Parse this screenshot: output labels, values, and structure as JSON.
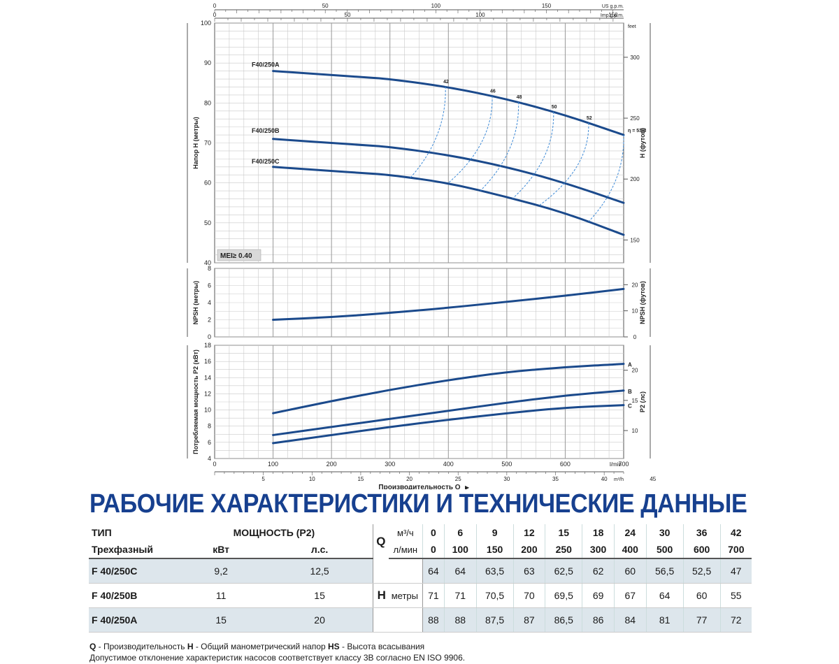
{
  "chart_data": [
    {
      "type": "line",
      "ylabel": "Напор H (метры)",
      "ylabel_right": "H (футов)",
      "ylim": [
        40,
        100
      ],
      "yticks": [
        40,
        50,
        60,
        70,
        80,
        90,
        100
      ],
      "y_right_ticks": [
        150,
        200,
        250,
        300
      ],
      "y_right_unit": "feet",
      "x_us_gpm_ticks": [
        0,
        50,
        100,
        150
      ],
      "x_us_label": "US g.p.m.",
      "x_imp_gpm_ticks": [
        0,
        50,
        100,
        150
      ],
      "x_imp_label": "Imp g.p.m.",
      "badge": "MEI≥ 0.40",
      "x": [
        100,
        150,
        200,
        250,
        300,
        400,
        500,
        600,
        700
      ],
      "series": [
        {
          "name": "F40/250A",
          "values": [
            88,
            87.5,
            87,
            86.5,
            86,
            84,
            81,
            77,
            72
          ]
        },
        {
          "name": "F40/250B",
          "values": [
            71,
            70.5,
            70,
            69.5,
            69,
            67,
            64,
            60,
            55
          ]
        },
        {
          "name": "F40/250C",
          "values": [
            64,
            63.5,
            63,
            62.5,
            62,
            60,
            56.5,
            52.5,
            47
          ]
        }
      ],
      "efficiency_labels": [
        "42",
        "46",
        "48",
        "50",
        "52",
        "η = 53%"
      ],
      "grid": true
    },
    {
      "type": "line",
      "ylabel": "NPSH (метры)",
      "ylabel_right": "NPSH (футов)",
      "ylim": [
        0,
        8
      ],
      "yticks": [
        0,
        2,
        4,
        6,
        8
      ],
      "y_right_ticks": [
        0,
        10,
        20
      ],
      "x": [
        100,
        200,
        300,
        400,
        500,
        600,
        700
      ],
      "series": [
        {
          "values": [
            2,
            2.3,
            2.8,
            3.4,
            4.1,
            4.8,
            5.6
          ]
        }
      ],
      "grid": true
    },
    {
      "type": "line",
      "ylabel": "Потребляемая мощность P2 (кВт)",
      "ylabel_right": "P2 (лс)",
      "ylim": [
        4,
        18
      ],
      "yticks": [
        4,
        6,
        8,
        10,
        12,
        14,
        16,
        18
      ],
      "y_right_ticks": [
        10,
        15,
        20
      ],
      "xlim": [
        0,
        700
      ],
      "xticks": [
        0,
        100,
        200,
        300,
        400,
        500,
        600,
        700
      ],
      "x_unit": "l/min",
      "x_m3h_ticks": [
        5,
        10,
        15,
        20,
        25,
        30,
        35,
        40,
        45
      ],
      "x_m3h_label": "m³/h",
      "xlabel": "Производительность Q",
      "x": [
        100,
        200,
        300,
        400,
        500,
        600,
        700
      ],
      "series": [
        {
          "name": "A",
          "values": [
            9.6,
            11.1,
            12.5,
            13.7,
            14.7,
            15.3,
            15.7
          ]
        },
        {
          "name": "B",
          "values": [
            6.9,
            7.9,
            8.9,
            9.9,
            10.9,
            11.8,
            12.4
          ]
        },
        {
          "name": "C",
          "values": [
            5.9,
            6.9,
            7.9,
            8.8,
            9.6,
            10.3,
            10.6
          ]
        }
      ],
      "grid": true
    }
  ],
  "table": {
    "title": "РАБОЧИЕ ХАРАКТЕРИСТИКИ И ТЕХНИЧЕСКИЕ ДАННЫЕ",
    "col_type": "ТИП",
    "col_type_sub": "Трехфазный",
    "col_power": "МОЩНОСТЬ (P2)",
    "col_kw": "кВт",
    "col_hp": "л.с.",
    "q_label": "Q",
    "q_unit1": "м³/ч",
    "q_unit2": "л/мин",
    "h_label": "H",
    "h_unit": "метры",
    "q_m3h": [
      "0",
      "6",
      "9",
      "12",
      "15",
      "18",
      "24",
      "30",
      "36",
      "42"
    ],
    "q_lmin": [
      "0",
      "100",
      "150",
      "200",
      "250",
      "300",
      "400",
      "500",
      "600",
      "700"
    ],
    "rows": [
      {
        "model": "F 40/250C",
        "kw": "9,2",
        "hp": "12,5",
        "h": [
          "64",
          "64",
          "63,5",
          "63",
          "62,5",
          "62",
          "60",
          "56,5",
          "52,5",
          "47"
        ]
      },
      {
        "model": "F 40/250B",
        "kw": "11",
        "hp": "15",
        "h": [
          "71",
          "71",
          "70,5",
          "70",
          "69,5",
          "69",
          "67",
          "64",
          "60",
          "55"
        ]
      },
      {
        "model": "F 40/250A",
        "kw": "15",
        "hp": "20",
        "h": [
          "88",
          "88",
          "87,5",
          "87",
          "86,5",
          "86",
          "84",
          "81",
          "77",
          "72"
        ]
      }
    ]
  },
  "footnote": {
    "q_key": "Q",
    "q_text": " - Производительность  ",
    "h_key": "H",
    "h_text": " - Общий манометрический напор  ",
    "hs_key": "HS",
    "hs_text": " - Высота всасывания",
    "line2": "Допустимое отклонение характеристик насосов соответствует классу 3В согласно EN ISO 9906."
  },
  "colors": {
    "curve": "#1b4a8c",
    "grid": "#c9c9c9",
    "title": "#17408f",
    "shade": "#dde6ec"
  }
}
